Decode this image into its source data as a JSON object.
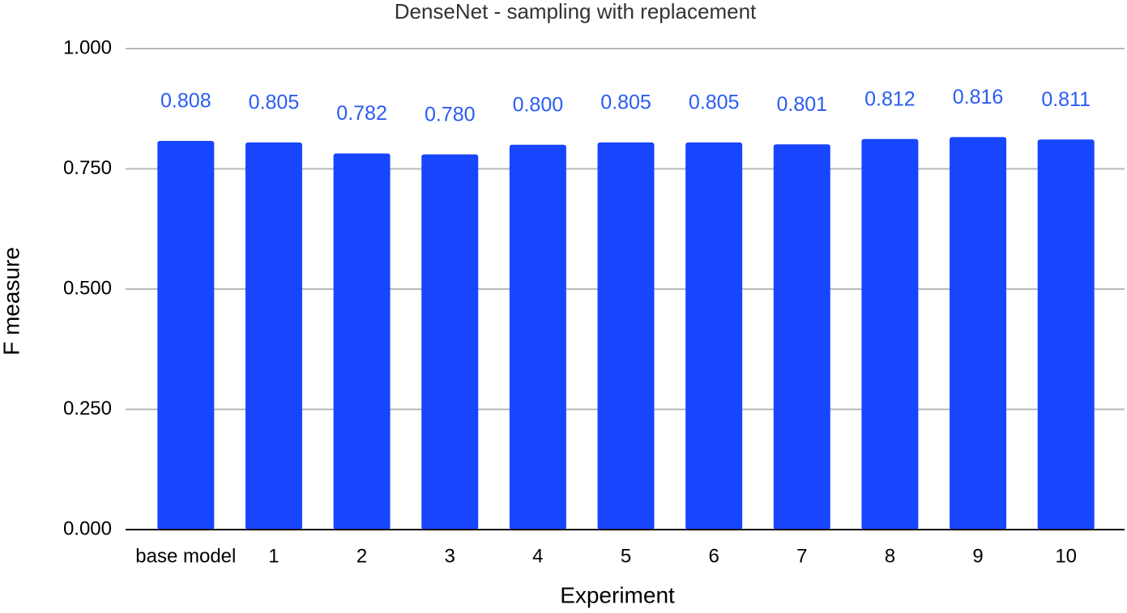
{
  "chart_data": {
    "type": "bar",
    "title": "DenseNet - sampling with replacement",
    "x_label": "Experiment",
    "y_label": "F measure",
    "categories": [
      "base model",
      "1",
      "2",
      "3",
      "4",
      "5",
      "6",
      "7",
      "8",
      "9",
      "10"
    ],
    "values": [
      0.808,
      0.805,
      0.782,
      0.78,
      0.8,
      0.805,
      0.805,
      0.801,
      0.812,
      0.816,
      0.811
    ],
    "value_labels": [
      "0.808",
      "0.805",
      "0.782",
      "0.780",
      "0.800",
      "0.805",
      "0.805",
      "0.801",
      "0.812",
      "0.816",
      "0.811"
    ],
    "color": "#1846ff",
    "label_color": "#2a5cf0",
    "ylim": [
      0,
      1
    ],
    "yticks": [
      {
        "value": 0,
        "label": "0.000"
      },
      {
        "value": 0.25,
        "label": "0.250"
      },
      {
        "value": 0.5,
        "label": "0.500"
      },
      {
        "value": 0.75,
        "label": "0.750"
      },
      {
        "value": 1,
        "label": "1.000"
      }
    ],
    "grid": true
  }
}
